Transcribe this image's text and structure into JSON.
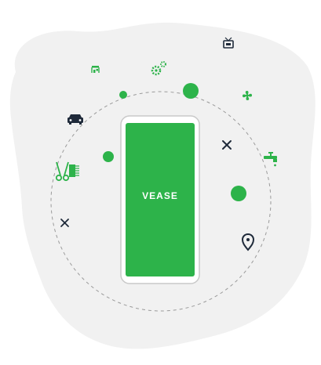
{
  "brand": {
    "name": "VEASE"
  },
  "colors": {
    "green": "#2db34a",
    "dark": "#1f2a3a",
    "blob": "#f1f1f1",
    "dashed": "#9a9a9a",
    "phone_outline": "#c9c9c9"
  },
  "icons": [
    "storefront-icon",
    "gears-icon",
    "tv-icon",
    "fan-icon",
    "car-icon",
    "tools-icon",
    "faucet-icon",
    "haircut-icon",
    "tools-small-icon",
    "location-pin-icon"
  ]
}
